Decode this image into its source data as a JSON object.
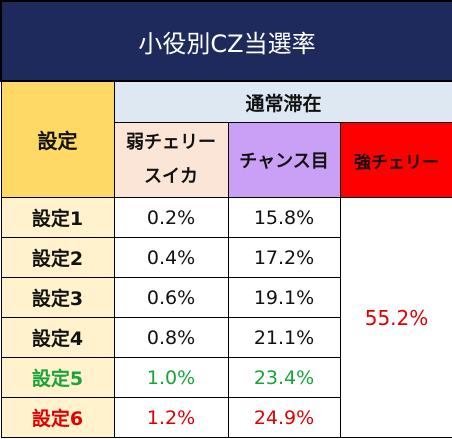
{
  "title": "小役別CZ当選率",
  "colors": {
    "title_bg": "#1f2a5c",
    "setting_header": "#ffd966",
    "setting_cells": "#fff2cc",
    "group_header": "#dde8f3",
    "weak_header": "#fbe5d6",
    "chance_header": "#c9a0f5",
    "strong_header": "#ff0000",
    "green_text": "#1aa33a",
    "red_text": "#e00000"
  },
  "headers": {
    "setting": "設定",
    "group": "通常滞在",
    "weak_line1": "弱チェリー",
    "weak_line2": "スイカ",
    "chance": "チャンス目",
    "strong": "強チェリー"
  },
  "rows": [
    {
      "setting": "設定1",
      "weak": "0.2%",
      "chance": "15.8%",
      "color": "#111111"
    },
    {
      "setting": "設定2",
      "weak": "0.4%",
      "chance": "17.2%",
      "color": "#111111"
    },
    {
      "setting": "設定3",
      "weak": "0.6%",
      "chance": "19.1%",
      "color": "#111111"
    },
    {
      "setting": "設定4",
      "weak": "0.8%",
      "chance": "21.1%",
      "color": "#111111"
    },
    {
      "setting": "設定5",
      "weak": "1.0%",
      "chance": "23.4%",
      "color": "#1aa33a"
    },
    {
      "setting": "設定6",
      "weak": "1.2%",
      "chance": "24.9%",
      "color": "#e00000"
    }
  ],
  "strong_value": "55.2%"
}
